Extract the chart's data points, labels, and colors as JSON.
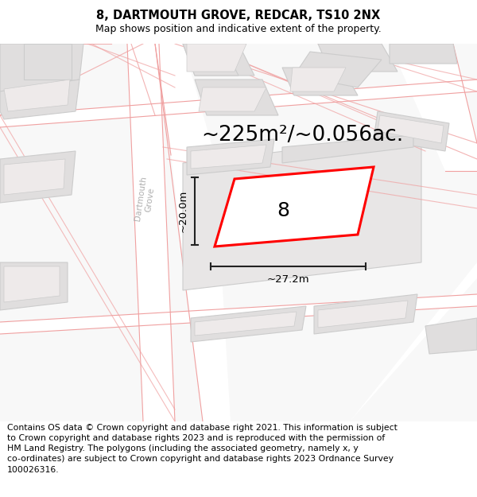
{
  "title_line1": "8, DARTMOUTH GROVE, REDCAR, TS10 2NX",
  "title_line2": "Map shows position and indicative extent of the property.",
  "area_text": "~225m²/~0.056ac.",
  "width_text": "~27.2m",
  "height_text": "~20.0m",
  "house_number": "8",
  "street_name": "Dartmouth\nGrove",
  "footer_text": "Contains OS data © Crown copyright and database right 2021. This information is subject to Crown copyright and database rights 2023 and is reproduced with the permission of HM Land Registry. The polygons (including the associated geometry, namely x, y co-ordinates) are subject to Crown copyright and database rights 2023 Ordnance Survey 100026316.",
  "bg_color": "#f8f8f8",
  "road_fill": "#ffffff",
  "building_color": "#e0dede",
  "building_edge": "#cccccc",
  "plot_color": "#ff0000",
  "dim_color": "#222222",
  "road_line_color": "#f0a0a0",
  "street_label_color": "#b0b0b0",
  "footer_fontsize": 7.8,
  "title_fontsize": 10.5,
  "subtitle_fontsize": 9
}
